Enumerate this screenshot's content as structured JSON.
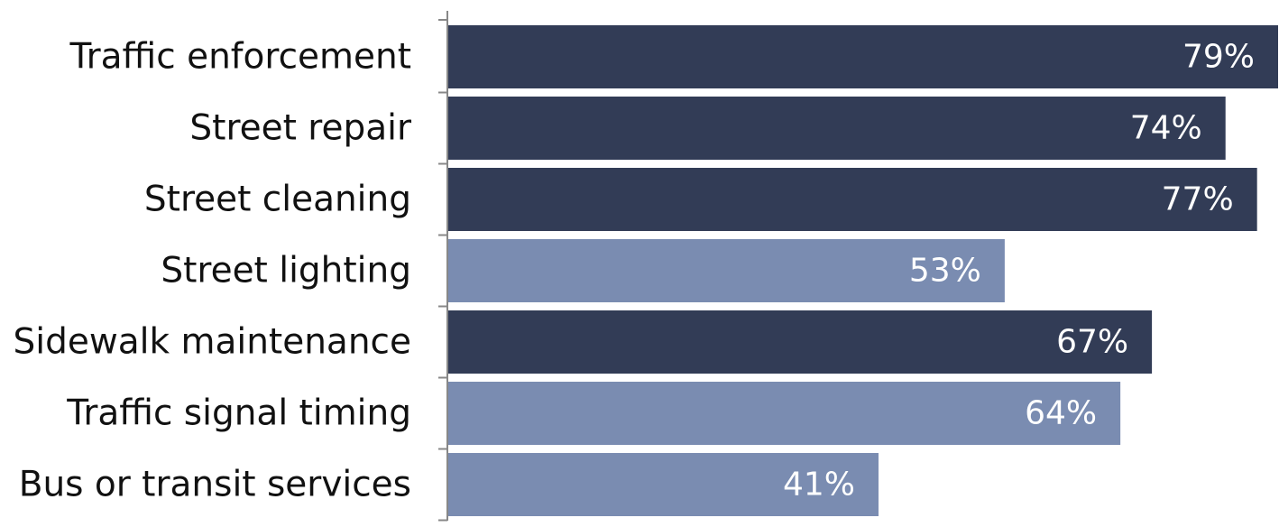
{
  "chart_data": {
    "type": "bar",
    "orientation": "horizontal",
    "categories": [
      "Traffic enforcement",
      "Street repair",
      "Street cleaning",
      "Street lighting",
      "Sidewalk maintenance",
      "Traffic signal timing",
      "Bus or transit services"
    ],
    "values": [
      79,
      74,
      77,
      53,
      67,
      64,
      41
    ],
    "value_labels": [
      "79%",
      "74%",
      "77%",
      "53%",
      "67%",
      "64%",
      "41%"
    ],
    "bar_groups": [
      "dark",
      "dark",
      "dark",
      "light",
      "dark",
      "light",
      "light"
    ],
    "colors": {
      "dark": "#323c56",
      "light": "#7a8cb1",
      "axis": "#888888",
      "label_text": "#111111",
      "value_text": "#ffffff"
    },
    "xlim": [
      0,
      79
    ],
    "grid": false,
    "legend": "none",
    "title": "",
    "xlabel": "",
    "ylabel": ""
  }
}
